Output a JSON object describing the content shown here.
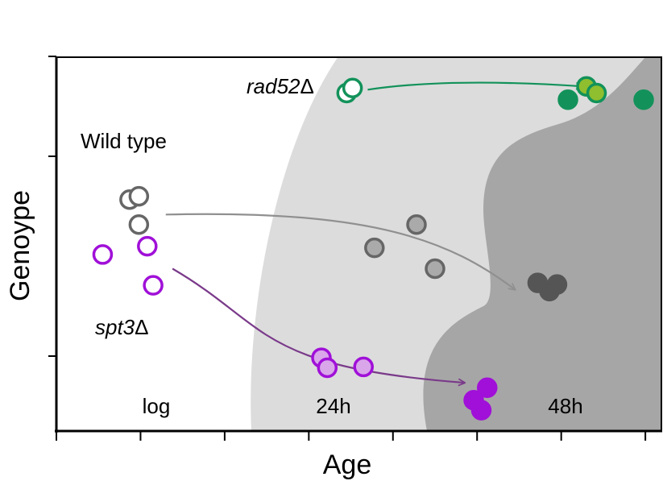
{
  "chart_data": {
    "type": "scatter",
    "xlabel": "Age",
    "ylabel": "Genoype",
    "xlim": [
      0,
      7.2
    ],
    "ylim": [
      0,
      4.5
    ],
    "phase_labels": [
      "log",
      "24h",
      "48h"
    ],
    "genotypes": [
      {
        "name": "rad52Δ",
        "name_base": "rad52",
        "name_suffix": "Δ",
        "stroke": "#12925a",
        "arrow_color": "#12925a",
        "points": [
          {
            "x": 3.45,
            "y": 4.06,
            "fill": "#ffffff",
            "stroke": "#12925a"
          },
          {
            "x": 3.52,
            "y": 4.12,
            "fill": "#ffffff",
            "stroke": "#12925a"
          },
          {
            "x": 6.08,
            "y": 3.98,
            "fill": "#12925a",
            "stroke": "#12925a"
          },
          {
            "x": 6.3,
            "y": 4.14,
            "fill": "#8fbe2e",
            "stroke": "#12925a"
          },
          {
            "x": 6.42,
            "y": 4.06,
            "fill": "#8fbe2e",
            "stroke": "#12925a"
          },
          {
            "x": 6.98,
            "y": 3.98,
            "fill": "#12925a",
            "stroke": "#12925a"
          }
        ],
        "arrow": {
          "from": [
            3.7,
            4.1
          ],
          "to": [
            6.25,
            4.14
          ]
        }
      },
      {
        "name": "Wild type",
        "stroke": "#808080",
        "arrow_color": "#909090",
        "points": [
          {
            "x": 0.87,
            "y": 2.78,
            "fill": "#ffffff",
            "stroke": "#666666"
          },
          {
            "x": 0.98,
            "y": 2.82,
            "fill": "#ffffff",
            "stroke": "#666666"
          },
          {
            "x": 0.98,
            "y": 2.48,
            "fill": "#ffffff",
            "stroke": "#666666"
          },
          {
            "x": 3.78,
            "y": 2.2,
            "fill": "#aaaaaa",
            "stroke": "#666666"
          },
          {
            "x": 4.28,
            "y": 2.48,
            "fill": "#aaaaaa",
            "stroke": "#666666"
          },
          {
            "x": 4.5,
            "y": 1.95,
            "fill": "#aaaaaa",
            "stroke": "#666666"
          },
          {
            "x": 5.72,
            "y": 1.78,
            "fill": "#555555",
            "stroke": "#555555"
          },
          {
            "x": 5.86,
            "y": 1.68,
            "fill": "#555555",
            "stroke": "#555555"
          },
          {
            "x": 5.95,
            "y": 1.76,
            "fill": "#555555",
            "stroke": "#555555"
          }
        ],
        "arrow": {
          "from": [
            1.3,
            2.6
          ],
          "to": [
            5.45,
            1.7
          ]
        }
      },
      {
        "name": "spt3Δ",
        "name_base": "spt3",
        "name_suffix": "Δ",
        "stroke": "#a010d8",
        "arrow_color": "#7a3a8a",
        "points": [
          {
            "x": 0.55,
            "y": 2.12,
            "fill": "#ffffff",
            "stroke": "#a010d8"
          },
          {
            "x": 1.08,
            "y": 2.22,
            "fill": "#ffffff",
            "stroke": "#a010d8"
          },
          {
            "x": 1.15,
            "y": 1.75,
            "fill": "#ffffff",
            "stroke": "#a010d8"
          },
          {
            "x": 3.15,
            "y": 0.88,
            "fill": "#d9a6ea",
            "stroke": "#a010d8"
          },
          {
            "x": 3.22,
            "y": 0.76,
            "fill": "#d9a6ea",
            "stroke": "#a010d8"
          },
          {
            "x": 3.65,
            "y": 0.77,
            "fill": "#d9a6ea",
            "stroke": "#a010d8"
          },
          {
            "x": 4.96,
            "y": 0.37,
            "fill": "#a010d8",
            "stroke": "#a010d8"
          },
          {
            "x": 5.05,
            "y": 0.25,
            "fill": "#a010d8",
            "stroke": "#a010d8"
          },
          {
            "x": 5.12,
            "y": 0.52,
            "fill": "#a010d8",
            "stroke": "#a010d8"
          }
        ],
        "arrow": {
          "from": [
            1.38,
            1.95
          ],
          "to": [
            4.85,
            0.58
          ]
        }
      }
    ],
    "background": {
      "light_region": "#dcdcdc",
      "dark_region": "#a6a6a6"
    }
  }
}
